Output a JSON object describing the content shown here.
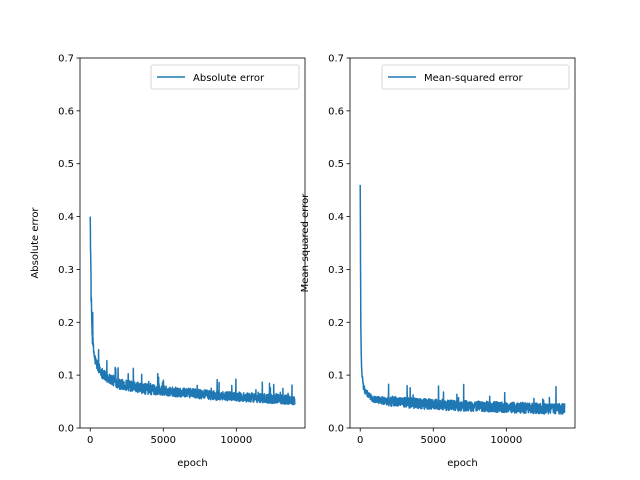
{
  "colors": {
    "series": "#1f77b4",
    "axes": "#000000",
    "background": "#ffffff"
  },
  "chart_data": [
    {
      "type": "line",
      "title": "",
      "xlabel": "epoch",
      "ylabel": "Absolute error",
      "xlim": [
        -700,
        14700
      ],
      "ylim": [
        0,
        0.7
      ],
      "xticks": [
        0,
        5000,
        10000
      ],
      "xtick_labels": [
        "0",
        "5000",
        "10000"
      ],
      "yticks": [
        0.0,
        0.1,
        0.2,
        0.3,
        0.4,
        0.5,
        0.6,
        0.7
      ],
      "ytick_labels": [
        "0.0",
        "0.1",
        "0.2",
        "0.3",
        "0.4",
        "0.5",
        "0.6",
        "0.7"
      ],
      "grid": false,
      "legend": {
        "position": "top-right",
        "entries": [
          "Absolute error"
        ]
      },
      "series": [
        {
          "name": "Absolute error",
          "x": [
            0,
            30,
            60,
            100,
            150,
            200,
            300,
            400,
            500,
            700,
            1000,
            1500,
            2000,
            3000,
            4000,
            5000,
            6000,
            7000,
            8000,
            9000,
            10000,
            11000,
            12000,
            13000,
            14000
          ],
          "y": [
            0.4,
            0.32,
            0.25,
            0.2,
            0.17,
            0.15,
            0.13,
            0.12,
            0.115,
            0.105,
            0.095,
            0.088,
            0.08,
            0.075,
            0.07,
            0.068,
            0.065,
            0.063,
            0.06,
            0.058,
            0.057,
            0.055,
            0.053,
            0.052,
            0.05
          ],
          "noise": [
            0.0,
            0.04,
            0.04,
            0.03,
            0.03,
            0.025,
            0.02,
            0.02,
            0.02,
            0.02,
            0.02,
            0.02,
            0.02,
            0.02,
            0.02,
            0.018,
            0.018,
            0.018,
            0.018,
            0.018,
            0.018,
            0.018,
            0.018,
            0.018,
            0.018
          ]
        }
      ]
    },
    {
      "type": "line",
      "title": "",
      "xlabel": "epoch",
      "ylabel": "Mean-squared error",
      "xlim": [
        -700,
        14700
      ],
      "ylim": [
        0,
        0.7
      ],
      "xticks": [
        0,
        5000,
        10000
      ],
      "xtick_labels": [
        "0",
        "5000",
        "10000"
      ],
      "yticks": [
        0.0,
        0.1,
        0.2,
        0.3,
        0.4,
        0.5,
        0.6,
        0.7
      ],
      "ytick_labels": [
        "0.0",
        "0.1",
        "0.2",
        "0.3",
        "0.4",
        "0.5",
        "0.6",
        "0.7"
      ],
      "grid": false,
      "legend": {
        "position": "top-right",
        "entries": [
          "Mean-squared error"
        ]
      },
      "series": [
        {
          "name": "Mean-squared error",
          "x": [
            0,
            20,
            40,
            60,
            100,
            150,
            200,
            300,
            400,
            600,
            800,
            1000,
            1500,
            2000,
            3000,
            4000,
            5000,
            6000,
            7000,
            8000,
            9000,
            10000,
            11000,
            12000,
            13000,
            14000
          ],
          "y": [
            0.46,
            0.3,
            0.2,
            0.15,
            0.11,
            0.09,
            0.08,
            0.07,
            0.065,
            0.06,
            0.055,
            0.052,
            0.05,
            0.048,
            0.045,
            0.043,
            0.042,
            0.04,
            0.039,
            0.038,
            0.037,
            0.036,
            0.035,
            0.034,
            0.033,
            0.033
          ],
          "noise": [
            0.0,
            0.04,
            0.03,
            0.02,
            0.02,
            0.02,
            0.015,
            0.012,
            0.012,
            0.012,
            0.012,
            0.012,
            0.015,
            0.02,
            0.02,
            0.02,
            0.02,
            0.02,
            0.02,
            0.02,
            0.02,
            0.02,
            0.02,
            0.02,
            0.02,
            0.02
          ]
        }
      ]
    }
  ]
}
